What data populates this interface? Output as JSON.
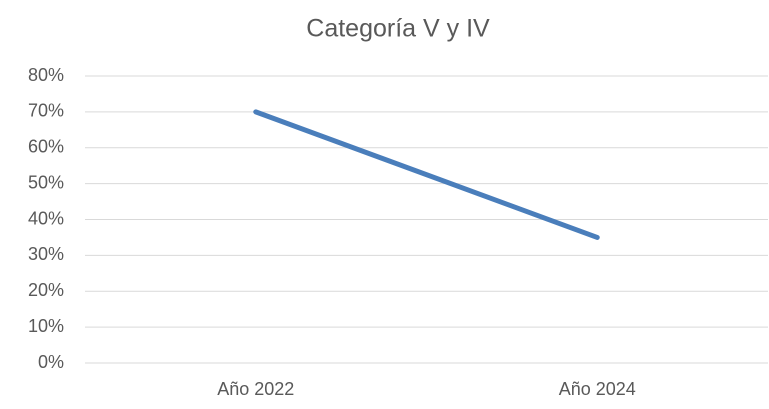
{
  "chart_data": {
    "type": "line",
    "title": "Categoría V y IV",
    "categories": [
      "Año 2022",
      "Año 2024"
    ],
    "values": [
      70,
      35
    ],
    "color": "#4a7ebb",
    "ylim": [
      0,
      80
    ],
    "yticks": [
      {
        "value": 0,
        "label": "0%"
      },
      {
        "value": 10,
        "label": "10%"
      },
      {
        "value": 20,
        "label": "20%"
      },
      {
        "value": 30,
        "label": "30%"
      },
      {
        "value": 40,
        "label": "40%"
      },
      {
        "value": 50,
        "label": "50%"
      },
      {
        "value": 60,
        "label": "60%"
      },
      {
        "value": 70,
        "label": "70%"
      },
      {
        "value": 80,
        "label": "80%"
      }
    ],
    "grid": true
  }
}
